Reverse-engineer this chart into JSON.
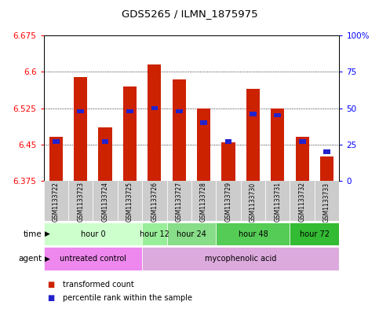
{
  "title": "GDS5265 / ILMN_1875975",
  "samples": [
    "GSM1133722",
    "GSM1133723",
    "GSM1133724",
    "GSM1133725",
    "GSM1133726",
    "GSM1133727",
    "GSM1133728",
    "GSM1133729",
    "GSM1133730",
    "GSM1133731",
    "GSM1133732",
    "GSM1133733"
  ],
  "transformed_counts": [
    6.465,
    6.59,
    6.485,
    6.57,
    6.615,
    6.585,
    6.525,
    6.455,
    6.565,
    6.525,
    6.465,
    6.425
  ],
  "percentile_ranks": [
    27,
    48,
    27,
    48,
    50,
    48,
    40,
    27,
    46,
    45,
    27,
    20
  ],
  "ymin": 6.375,
  "ymax": 6.675,
  "yticks": [
    6.375,
    6.45,
    6.525,
    6.6,
    6.675
  ],
  "right_yticks": [
    0,
    25,
    50,
    75,
    100
  ],
  "bar_color": "#cc2200",
  "percentile_color": "#2222cc",
  "time_groups": [
    {
      "label": "hour 0",
      "start": 0,
      "end": 3,
      "color": "#ccffcc"
    },
    {
      "label": "hour 12",
      "start": 4,
      "end": 4,
      "color": "#99ee99"
    },
    {
      "label": "hour 24",
      "start": 5,
      "end": 6,
      "color": "#88dd88"
    },
    {
      "label": "hour 48",
      "start": 7,
      "end": 9,
      "color": "#55cc55"
    },
    {
      "label": "hour 72",
      "start": 10,
      "end": 11,
      "color": "#33bb33"
    }
  ],
  "agent_groups": [
    {
      "label": "untreated control",
      "start": 0,
      "end": 3,
      "color": "#ee88ee"
    },
    {
      "label": "mycophenolic acid",
      "start": 4,
      "end": 11,
      "color": "#ddaadd"
    }
  ],
  "sample_bg_color": "#cccccc",
  "legend_items": [
    {
      "label": "transformed count",
      "color": "#cc2200"
    },
    {
      "label": "percentile rank within the sample",
      "color": "#2222cc"
    }
  ]
}
